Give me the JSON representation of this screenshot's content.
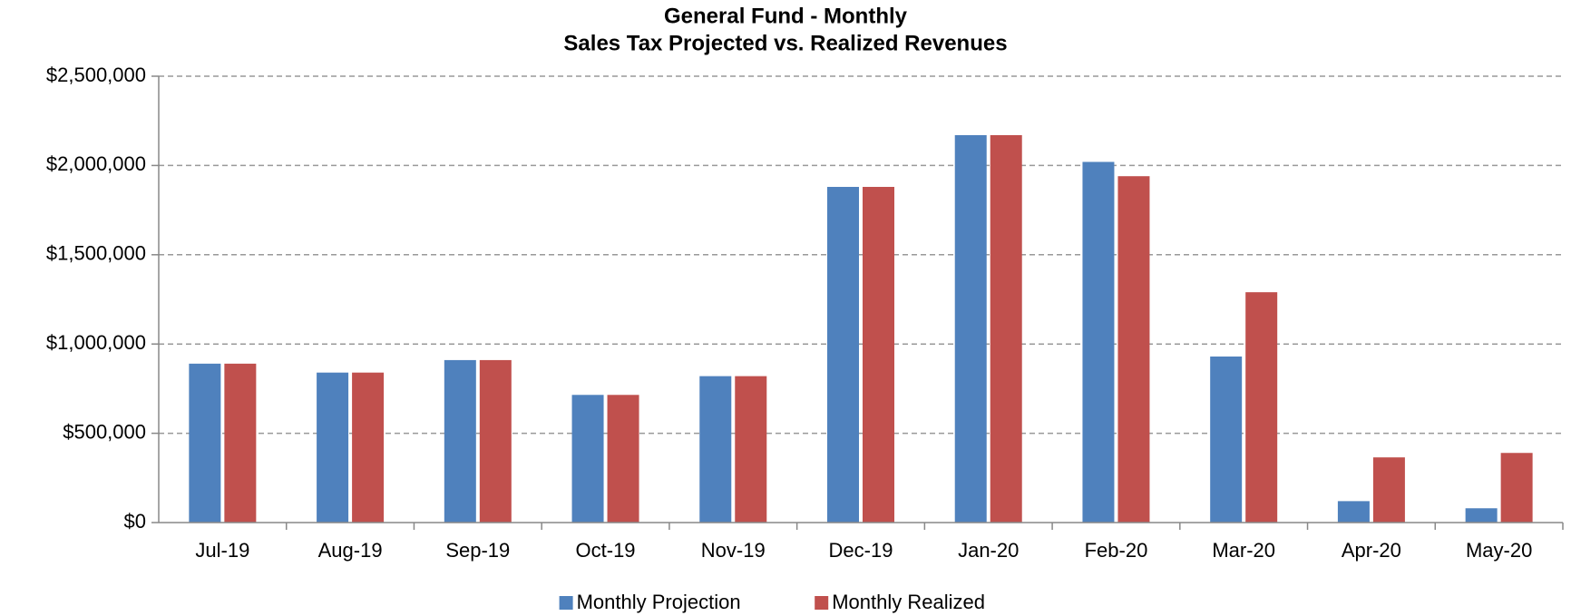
{
  "chart_data": {
    "type": "bar",
    "title": "General Fund - Monthly",
    "subtitle": "Sales Tax Projected vs. Realized Revenues",
    "categories": [
      "Jul-19",
      "Aug-19",
      "Sep-19",
      "Oct-19",
      "Nov-19",
      "Dec-19",
      "Jan-20",
      "Feb-20",
      "Mar-20",
      "Apr-20",
      "May-20"
    ],
    "series": [
      {
        "name": "Monthly Projection",
        "color": "#4f81bd",
        "values": [
          890000,
          840000,
          910000,
          715000,
          820000,
          1880000,
          2170000,
          2020000,
          930000,
          120000,
          80000
        ]
      },
      {
        "name": "Monthly Realized",
        "color": "#c0504d",
        "values": [
          890000,
          840000,
          910000,
          715000,
          820000,
          1880000,
          2170000,
          1940000,
          1290000,
          365000,
          390000
        ]
      }
    ],
    "ylim": [
      0,
      2500000
    ],
    "yticks": [
      {
        "value": 0,
        "label": "$0"
      },
      {
        "value": 500000,
        "label": "$500,000"
      },
      {
        "value": 1000000,
        "label": "$1,000,000"
      },
      {
        "value": 1500000,
        "label": "$1,500,000"
      },
      {
        "value": 2000000,
        "label": "$2,000,000"
      },
      {
        "value": 2500000,
        "label": "$2,500,000"
      }
    ],
    "grid": true,
    "legend": "bottom"
  }
}
